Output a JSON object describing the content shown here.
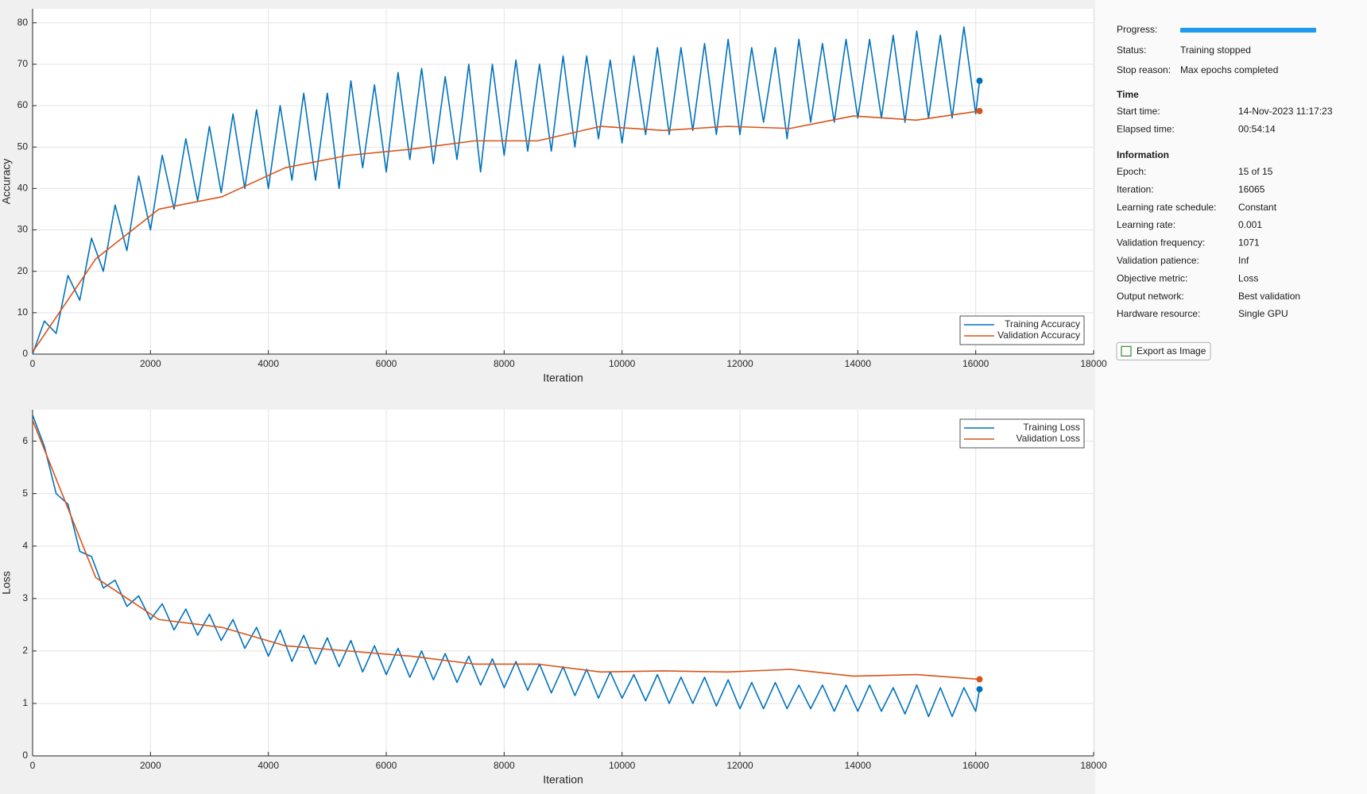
{
  "chart_data": [
    {
      "type": "line",
      "ylabel": "Accuracy",
      "xlabel": "Iteration",
      "xlim": [
        0,
        18000
      ],
      "xticks": [
        0,
        2000,
        4000,
        6000,
        8000,
        10000,
        12000,
        14000,
        16000,
        18000
      ],
      "ylim": [
        0,
        83.4
      ],
      "yticks": [
        0,
        10,
        20,
        30,
        40,
        50,
        60,
        70,
        80
      ],
      "grid": true,
      "legend": "lower right",
      "series": [
        {
          "name": "Training Accuracy",
          "color": "#0072bd",
          "x": [
            0,
            200,
            400,
            600,
            800,
            1000,
            1200,
            1400,
            1600,
            1800,
            2000,
            2200,
            2400,
            2600,
            2800,
            3000,
            3200,
            3400,
            3600,
            3800,
            4000,
            4200,
            4400,
            4600,
            4800,
            5000,
            5200,
            5400,
            5600,
            5800,
            6000,
            6200,
            6400,
            6600,
            6800,
            7000,
            7200,
            7400,
            7600,
            7800,
            8000,
            8200,
            8400,
            8600,
            8800,
            9000,
            9200,
            9400,
            9600,
            9800,
            10000,
            10200,
            10400,
            10600,
            10800,
            11000,
            11200,
            11400,
            11600,
            11800,
            12000,
            12200,
            12400,
            12600,
            12800,
            13000,
            13200,
            13400,
            13600,
            13800,
            14000,
            14200,
            14400,
            14600,
            14800,
            15000,
            15200,
            15400,
            15600,
            15800,
            16000,
            16065
          ],
          "values": [
            0,
            8,
            5,
            19,
            13,
            28,
            20,
            36,
            25,
            43,
            30,
            48,
            35,
            52,
            37,
            55,
            39,
            58,
            40,
            59,
            40,
            60,
            42,
            63,
            42,
            63,
            40,
            66,
            45,
            65,
            44,
            68,
            47,
            69,
            46,
            67,
            47,
            70,
            44,
            70,
            48,
            71,
            49,
            70,
            49,
            72,
            50,
            72,
            52,
            71,
            51,
            72,
            53,
            74,
            53,
            74,
            54,
            75,
            53,
            76,
            53,
            74,
            56,
            74,
            52,
            76,
            56,
            75,
            56,
            76,
            57,
            76,
            57,
            77,
            56,
            78,
            57,
            77,
            57,
            79,
            58,
            66
          ]
        },
        {
          "name": "Validation Accuracy",
          "color": "#d95319",
          "x": [
            0,
            1071,
            2142,
            3213,
            4284,
            5355,
            6426,
            7497,
            8568,
            9639,
            10710,
            11781,
            12852,
            13923,
            14994,
            16065
          ],
          "values": [
            0.5,
            23,
            35,
            38,
            45,
            48,
            49.5,
            51.5,
            51.5,
            55,
            54,
            55,
            54.5,
            57.5,
            56.5,
            58.7
          ]
        }
      ]
    },
    {
      "type": "line",
      "ylabel": "Loss",
      "xlabel": "Iteration",
      "xlim": [
        0,
        18000
      ],
      "xticks": [
        0,
        2000,
        4000,
        6000,
        8000,
        10000,
        12000,
        14000,
        16000,
        18000
      ],
      "ylim": [
        0,
        6.6
      ],
      "yticks": [
        0,
        1,
        2,
        3,
        4,
        5,
        6
      ],
      "grid": true,
      "legend": "upper right",
      "series": [
        {
          "name": "Training Loss",
          "color": "#0072bd",
          "x": [
            0,
            200,
            400,
            600,
            800,
            1000,
            1200,
            1400,
            1600,
            1800,
            2000,
            2200,
            2400,
            2600,
            2800,
            3000,
            3200,
            3400,
            3600,
            3800,
            4000,
            4200,
            4400,
            4600,
            4800,
            5000,
            5200,
            5400,
            5600,
            5800,
            6000,
            6200,
            6400,
            6600,
            6800,
            7000,
            7200,
            7400,
            7600,
            7800,
            8000,
            8200,
            8400,
            8600,
            8800,
            9000,
            9200,
            9400,
            9600,
            9800,
            10000,
            10200,
            10400,
            10600,
            10800,
            11000,
            11200,
            11400,
            11600,
            11800,
            12000,
            12200,
            12400,
            12600,
            12800,
            13000,
            13200,
            13400,
            13600,
            13800,
            14000,
            14200,
            14400,
            14600,
            14800,
            15000,
            15200,
            15400,
            15600,
            15800,
            16000,
            16065
          ],
          "values": [
            6.5,
            5.9,
            5.0,
            4.8,
            3.9,
            3.8,
            3.2,
            3.35,
            2.85,
            3.05,
            2.6,
            2.9,
            2.4,
            2.8,
            2.3,
            2.7,
            2.2,
            2.6,
            2.05,
            2.45,
            1.9,
            2.4,
            1.8,
            2.3,
            1.75,
            2.25,
            1.7,
            2.2,
            1.6,
            2.1,
            1.55,
            2.05,
            1.5,
            2.0,
            1.45,
            1.95,
            1.4,
            1.9,
            1.35,
            1.85,
            1.3,
            1.8,
            1.25,
            1.75,
            1.2,
            1.7,
            1.15,
            1.65,
            1.1,
            1.6,
            1.1,
            1.55,
            1.05,
            1.55,
            1.0,
            1.5,
            1.0,
            1.5,
            0.95,
            1.45,
            0.9,
            1.4,
            0.9,
            1.4,
            0.9,
            1.35,
            0.9,
            1.35,
            0.85,
            1.35,
            0.85,
            1.35,
            0.85,
            1.3,
            0.8,
            1.35,
            0.75,
            1.3,
            0.75,
            1.3,
            0.85,
            1.27
          ]
        },
        {
          "name": "Validation Loss",
          "color": "#d95319",
          "x": [
            0,
            1071,
            2142,
            3213,
            4284,
            5355,
            6426,
            7497,
            8568,
            9639,
            10710,
            11781,
            12852,
            13923,
            14994,
            16065
          ],
          "values": [
            6.4,
            3.4,
            2.6,
            2.45,
            2.1,
            2.0,
            1.9,
            1.75,
            1.75,
            1.6,
            1.62,
            1.6,
            1.65,
            1.52,
            1.55,
            1.46
          ]
        }
      ]
    }
  ],
  "panel": {
    "progress_label": "Progress:",
    "rows": [
      [
        "Status:",
        "Training stopped"
      ],
      [
        "Stop reason:",
        "Max epochs completed"
      ]
    ],
    "sections": [
      {
        "title": "Time",
        "rows": [
          [
            "Start time:",
            "14-Nov-2023 11:17:23"
          ],
          [
            "Elapsed time:",
            "00:54:14"
          ]
        ]
      },
      {
        "title": "Information",
        "rows": [
          [
            "Epoch:",
            "15 of 15"
          ],
          [
            "Iteration:",
            "16065"
          ],
          [
            "Learning rate schedule:",
            "Constant"
          ],
          [
            "Learning rate:",
            "0.001"
          ],
          [
            "Validation frequency:",
            "1071"
          ],
          [
            "Validation patience:",
            "Inf"
          ],
          [
            "Objective metric:",
            "Loss"
          ],
          [
            "Output network:",
            "Best validation"
          ],
          [
            "Hardware resource:",
            "Single GPU"
          ]
        ]
      }
    ],
    "button": "Export as Image"
  }
}
